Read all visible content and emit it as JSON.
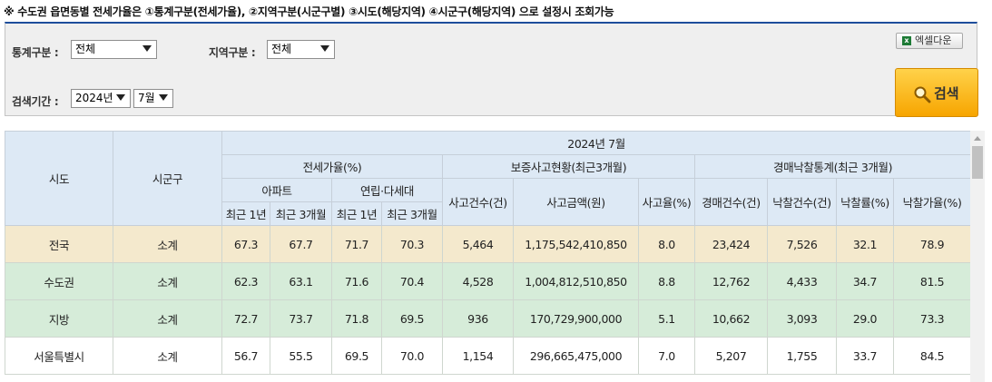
{
  "notice": "※ 수도권 읍면동별 전세가율은 ①통계구분(전세가율), ②지역구분(시군구별) ③시도(해당지역) ④시군구(해당지역) 으로 설정시 조회가능",
  "filters": {
    "stat_label": "통계구분 :",
    "stat_value": "전체",
    "region_label": "지역구분 :",
    "region_value": "전체",
    "period_label": "검색기간 :",
    "year_value": "2024년",
    "month_value": "7월"
  },
  "buttons": {
    "excel": "엑셀다운",
    "search": "검색"
  },
  "table": {
    "h_sido": "시도",
    "h_sigungu": "시군구",
    "h_period": "2024년 7월",
    "h_jeonse": "전세가율(%)",
    "h_guarantee": "보증사고현황(최근3개월)",
    "h_auction": "경매낙찰통계(최근 3개월)",
    "h_apt": "아파트",
    "h_villa": "연립·다세대",
    "h_1y_a": "최근 1년",
    "h_3m_a": "최근 3개월",
    "h_1y_b": "최근 1년",
    "h_3m_b": "최근 3개월",
    "h_acc_count": "사고건수(건)",
    "h_acc_amount": "사고금액(원)",
    "h_acc_rate": "사고율(%)",
    "h_auc_count": "경매건수(건)",
    "h_bid_count": "낙찰건수(건)",
    "h_bid_rate": "낙찰률(%)",
    "h_bid_price": "낙찰가율(%)",
    "rows": [
      {
        "sido": "전국",
        "sigungu": "소계",
        "apt_1y": "67.3",
        "apt_3m": "67.7",
        "villa_1y": "71.7",
        "villa_3m": "70.3",
        "acc_count": "5,464",
        "acc_amount": "1,175,542,410,850",
        "acc_rate": "8.0",
        "auc_count": "23,424",
        "bid_count": "7,526",
        "bid_rate": "32.1",
        "bid_price": "78.9"
      },
      {
        "sido": "수도권",
        "sigungu": "소계",
        "apt_1y": "62.3",
        "apt_3m": "63.1",
        "villa_1y": "71.6",
        "villa_3m": "70.4",
        "acc_count": "4,528",
        "acc_amount": "1,004,812,510,850",
        "acc_rate": "8.8",
        "auc_count": "12,762",
        "bid_count": "4,433",
        "bid_rate": "34.7",
        "bid_price": "81.5"
      },
      {
        "sido": "지방",
        "sigungu": "소계",
        "apt_1y": "72.7",
        "apt_3m": "73.7",
        "villa_1y": "71.8",
        "villa_3m": "69.5",
        "acc_count": "936",
        "acc_amount": "170,729,900,000",
        "acc_rate": "5.1",
        "auc_count": "10,662",
        "bid_count": "3,093",
        "bid_rate": "29.0",
        "bid_price": "73.3"
      },
      {
        "sido": "서울특별시",
        "sigungu": "소계",
        "apt_1y": "56.7",
        "apt_3m": "55.5",
        "villa_1y": "69.5",
        "villa_3m": "70.0",
        "acc_count": "1,154",
        "acc_amount": "296,665,475,000",
        "acc_rate": "7.0",
        "auc_count": "5,207",
        "bid_count": "1,755",
        "bid_rate": "33.7",
        "bid_price": "84.5"
      }
    ]
  }
}
